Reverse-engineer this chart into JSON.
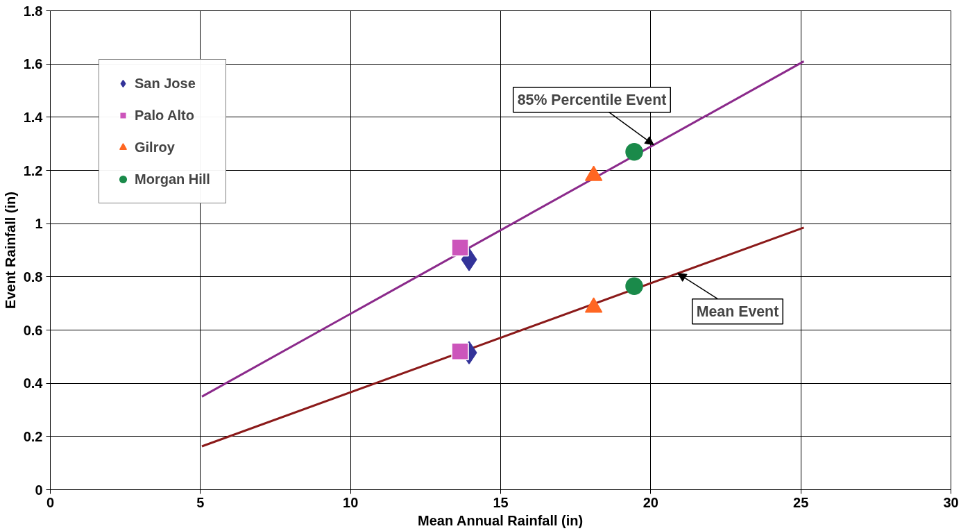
{
  "chart_data": {
    "type": "scatter",
    "xlabel": "Mean Annual Rainfall (in)",
    "ylabel": "Event Rainfall (in)",
    "xlim": [
      0,
      30
    ],
    "xticks": [
      0,
      5,
      10,
      15,
      20,
      25,
      30
    ],
    "ylim": [
      0,
      1.8
    ],
    "yticks": [
      0,
      0.2,
      0.4,
      0.6,
      0.8,
      1,
      1.2,
      1.4,
      1.6,
      1.8
    ],
    "grid": true,
    "legend": "top left",
    "series": [
      {
        "type": "line",
        "color": "#8b2a8b",
        "x": [
          5.05,
          25.1
        ],
        "values": [
          0.35,
          1.61
        ],
        "marker": "none"
      },
      {
        "type": "line",
        "color": "#8b1a1a",
        "x": [
          5.05,
          25.1
        ],
        "values": [
          0.163,
          0.985
        ],
        "marker": "none"
      },
      {
        "name": "San Jose",
        "color": "#333399",
        "marker": "diamond",
        "x": [
          13.95,
          13.95
        ],
        "values": [
          0.865,
          0.515
        ]
      },
      {
        "name": "Palo Alto",
        "color": "#cc55bb",
        "marker": "square",
        "x": [
          13.65,
          13.65
        ],
        "values": [
          0.91,
          0.52
        ]
      },
      {
        "name": "Gilroy",
        "color": "#ff6622",
        "marker": "triangle",
        "x": [
          18.1,
          18.1
        ],
        "values": [
          1.18,
          0.685
        ]
      },
      {
        "name": "Morgan Hill",
        "color": "#1a8a4a",
        "marker": "circle",
        "x": [
          19.45,
          19.45
        ],
        "values": [
          1.27,
          0.765
        ]
      }
    ],
    "annotations": [
      {
        "text": "85% Percentile Event",
        "x": 20.1,
        "y": 1.296
      },
      {
        "text": "Mean Event",
        "x": 20.9,
        "y": 0.813
      }
    ]
  }
}
